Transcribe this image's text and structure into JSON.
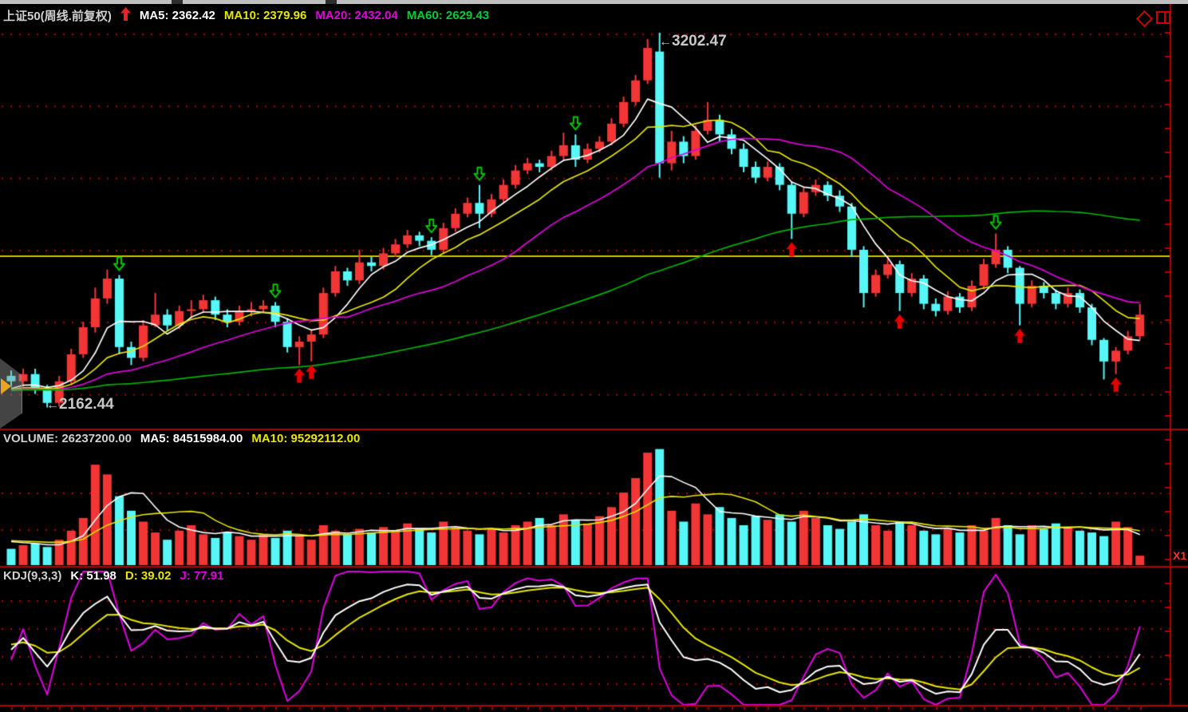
{
  "header": {
    "title": "上证50(周线.前复权)",
    "trend_icon": "up-arrow-red",
    "mas": [
      {
        "label": "MA5: 2362.42",
        "color": "#ffffff"
      },
      {
        "label": "MA10: 2379.96",
        "color": "#e6e600"
      },
      {
        "label": "MA20: 2432.04",
        "color": "#e000e0"
      },
      {
        "label": "MA60: 2629.43",
        "color": "#00cc33"
      }
    ]
  },
  "volume_header": {
    "volume_label": "VOLUME: 26237200.00",
    "ma5_label": "MA5: 84515984.00",
    "ma10_label": "MA10: 95292112.00"
  },
  "kdj_header": {
    "title": "KDJ(9,3,3)",
    "k_label": "K: 51.98",
    "d_label": "D: 39.02",
    "j_label": "J: 77.91"
  },
  "annotations": {
    "high_arrow": "←",
    "high_label": "3202.47",
    "low_arrow": "←",
    "low_label": "2162.44",
    "x1_label": "X1"
  },
  "colors": {
    "up_candle": "#f23535",
    "down_candle": "#57f7f7",
    "ma5": "#ffffff",
    "ma10": "#e6e600",
    "ma20": "#e000e0",
    "ma60": "#00b400",
    "grid_dot": "#b40000",
    "divider": "#b40000",
    "yellow_hline": "#c8c800",
    "buy_marker": "#e60000",
    "sell_marker": "#00c800",
    "background": "#000000"
  },
  "chart_data": {
    "type": "candlestick",
    "symbol": "上证50",
    "timeframe": "weekly",
    "price_gridlines": [
      3200,
      3000,
      2800,
      2600,
      2400,
      2200
    ],
    "yellow_hline_price": 2584,
    "volume_gridlines_millions": [
      100,
      200
    ],
    "kdj_gridlines": [
      20,
      40,
      60,
      80
    ],
    "ma_periods": [
      5,
      10,
      20,
      60
    ],
    "kdj_params": [
      9,
      3,
      3
    ],
    "high_annotation_value": 3202.47,
    "low_annotation_value": 2162.44,
    "ohlc": [
      [
        2250,
        2265,
        2220,
        2235
      ],
      [
        2235,
        2270,
        2220,
        2255
      ],
      [
        2255,
        2270,
        2200,
        2215
      ],
      [
        2215,
        2225,
        2162.44,
        2175
      ],
      [
        2175,
        2250,
        2165,
        2235
      ],
      [
        2235,
        2325,
        2225,
        2310
      ],
      [
        2310,
        2400,
        2300,
        2385
      ],
      [
        2385,
        2495,
        2370,
        2465
      ],
      [
        2465,
        2545,
        2450,
        2520
      ],
      [
        2520,
        2530,
        2310,
        2330
      ],
      [
        2330,
        2345,
        2280,
        2300
      ],
      [
        2300,
        2405,
        2290,
        2390
      ],
      [
        2390,
        2480,
        2385,
        2420
      ],
      [
        2420,
        2435,
        2375,
        2390
      ],
      [
        2390,
        2445,
        2380,
        2430
      ],
      [
        2430,
        2460,
        2410,
        2435
      ],
      [
        2435,
        2475,
        2425,
        2460
      ],
      [
        2460,
        2470,
        2405,
        2420
      ],
      [
        2420,
        2435,
        2385,
        2400
      ],
      [
        2400,
        2445,
        2390,
        2430
      ],
      [
        2430,
        2455,
        2415,
        2435
      ],
      [
        2435,
        2460,
        2425,
        2445
      ],
      [
        2445,
        2455,
        2385,
        2400
      ],
      [
        2400,
        2410,
        2315,
        2330
      ],
      [
        2330,
        2360,
        2280,
        2345
      ],
      [
        2345,
        2380,
        2290,
        2365
      ],
      [
        2365,
        2495,
        2355,
        2480
      ],
      [
        2480,
        2555,
        2470,
        2540
      ],
      [
        2540,
        2550,
        2500,
        2515
      ],
      [
        2515,
        2600,
        2505,
        2565
      ],
      [
        2565,
        2580,
        2540,
        2555
      ],
      [
        2555,
        2605,
        2545,
        2590
      ],
      [
        2590,
        2630,
        2580,
        2615
      ],
      [
        2615,
        2655,
        2605,
        2640
      ],
      [
        2640,
        2650,
        2610,
        2625
      ],
      [
        2625,
        2635,
        2585,
        2600
      ],
      [
        2600,
        2675,
        2590,
        2660
      ],
      [
        2660,
        2715,
        2650,
        2700
      ],
      [
        2700,
        2745,
        2690,
        2730
      ],
      [
        2730,
        2780,
        2660,
        2700
      ],
      [
        2700,
        2755,
        2690,
        2740
      ],
      [
        2740,
        2795,
        2730,
        2780
      ],
      [
        2780,
        2835,
        2770,
        2820
      ],
      [
        2820,
        2855,
        2810,
        2840
      ],
      [
        2840,
        2850,
        2815,
        2830
      ],
      [
        2830,
        2875,
        2820,
        2860
      ],
      [
        2860,
        2925,
        2850,
        2890
      ],
      [
        2890,
        2920,
        2830,
        2850
      ],
      [
        2850,
        2895,
        2840,
        2880
      ],
      [
        2880,
        2915,
        2870,
        2900
      ],
      [
        2900,
        2965,
        2890,
        2950
      ],
      [
        2950,
        3025,
        2940,
        3010
      ],
      [
        3010,
        3085,
        3000,
        3070
      ],
      [
        3070,
        3185,
        3060,
        3160
      ],
      [
        3150,
        3202.47,
        2800,
        2840
      ],
      [
        2840,
        2930,
        2820,
        2900
      ],
      [
        2900,
        2915,
        2840,
        2860
      ],
      [
        2860,
        2945,
        2850,
        2930
      ],
      [
        2930,
        3010,
        2920,
        2960
      ],
      [
        2960,
        2975,
        2900,
        2920
      ],
      [
        2920,
        2935,
        2865,
        2880
      ],
      [
        2880,
        2895,
        2815,
        2830
      ],
      [
        2830,
        2845,
        2785,
        2800
      ],
      [
        2800,
        2845,
        2790,
        2830
      ],
      [
        2830,
        2840,
        2765,
        2780
      ],
      [
        2780,
        2790,
        2630,
        2700
      ],
      [
        2700,
        2775,
        2690,
        2760
      ],
      [
        2760,
        2795,
        2750,
        2780
      ],
      [
        2780,
        2790,
        2735,
        2750
      ],
      [
        2750,
        2765,
        2705,
        2720
      ],
      [
        2720,
        2730,
        2580,
        2600
      ],
      [
        2600,
        2610,
        2440,
        2480
      ],
      [
        2480,
        2545,
        2470,
        2530
      ],
      [
        2530,
        2575,
        2520,
        2560
      ],
      [
        2560,
        2570,
        2430,
        2480
      ],
      [
        2480,
        2535,
        2470,
        2520
      ],
      [
        2520,
        2530,
        2435,
        2450
      ],
      [
        2450,
        2465,
        2415,
        2430
      ],
      [
        2430,
        2485,
        2420,
        2470
      ],
      [
        2470,
        2480,
        2425,
        2440
      ],
      [
        2440,
        2515,
        2430,
        2500
      ],
      [
        2500,
        2575,
        2490,
        2560
      ],
      [
        2560,
        2645,
        2550,
        2600
      ],
      [
        2600,
        2610,
        2535,
        2550
      ],
      [
        2550,
        2555,
        2390,
        2450
      ],
      [
        2450,
        2515,
        2440,
        2500
      ],
      [
        2500,
        2510,
        2465,
        2480
      ],
      [
        2480,
        2490,
        2435,
        2450
      ],
      [
        2450,
        2495,
        2440,
        2480
      ],
      [
        2480,
        2490,
        2425,
        2440
      ],
      [
        2440,
        2450,
        2335,
        2350
      ],
      [
        2350,
        2355,
        2240,
        2290
      ],
      [
        2290,
        2330,
        2255,
        2320
      ],
      [
        2320,
        2375,
        2310,
        2360
      ],
      [
        2360,
        2450,
        2350,
        2420
      ]
    ],
    "volumes_millions": [
      45,
      55,
      60,
      50,
      70,
      95,
      130,
      277,
      250,
      190,
      150,
      120,
      90,
      70,
      95,
      110,
      85,
      75,
      90,
      80,
      70,
      85,
      75,
      95,
      80,
      70,
      110,
      95,
      85,
      100,
      90,
      105,
      95,
      115,
      100,
      90,
      120,
      105,
      95,
      85,
      100,
      90,
      110,
      120,
      130,
      110,
      140,
      125,
      115,
      135,
      160,
      200,
      240,
      310,
      320,
      150,
      120,
      170,
      140,
      160,
      130,
      110,
      135,
      125,
      140,
      120,
      150,
      130,
      110,
      100,
      120,
      140,
      110,
      95,
      120,
      110,
      95,
      85,
      100,
      90,
      110,
      95,
      130,
      110,
      85,
      110,
      100,
      115,
      105,
      95,
      90,
      80,
      120,
      105,
      26.2
    ],
    "buy_marker_indices": [
      24,
      25,
      65,
      74,
      84,
      92
    ],
    "sell_marker_indices": [
      9,
      22,
      35,
      39,
      47,
      82
    ]
  }
}
